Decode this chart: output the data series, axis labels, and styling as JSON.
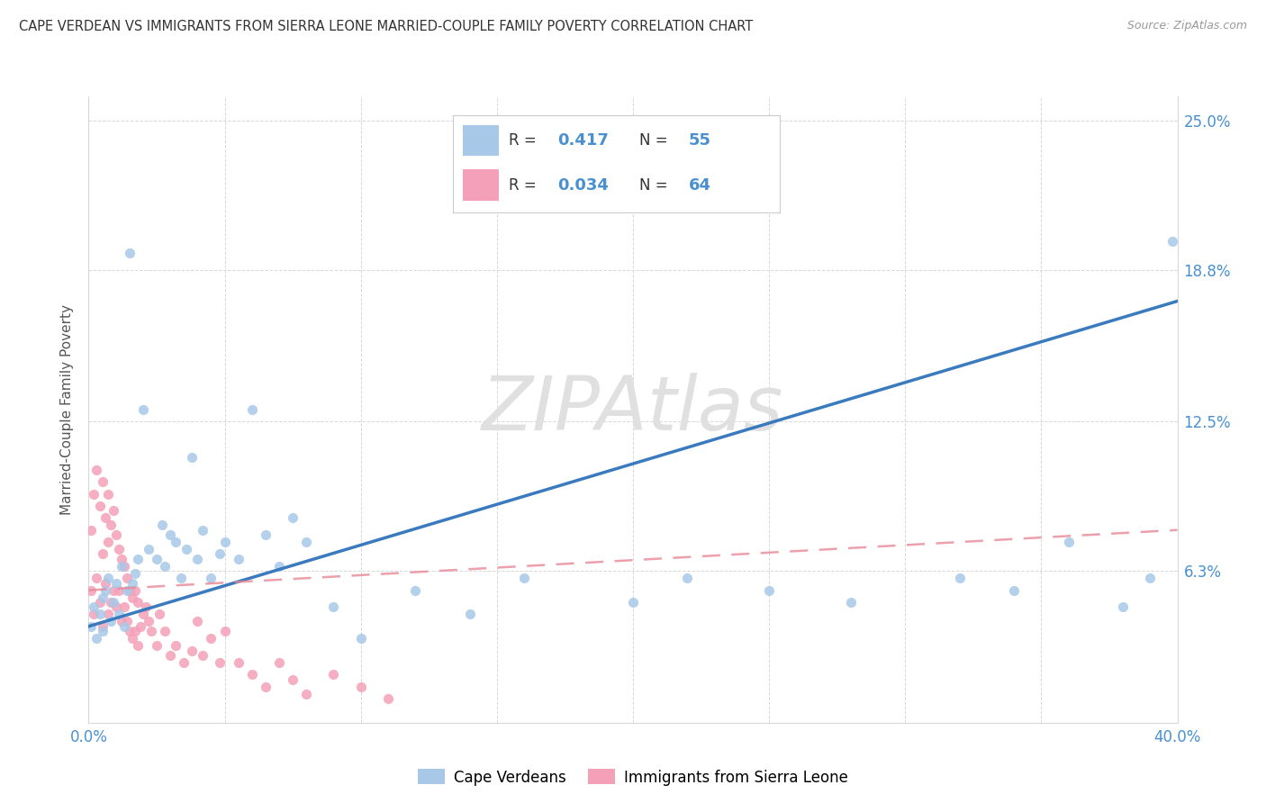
{
  "title": "CAPE VERDEAN VS IMMIGRANTS FROM SIERRA LEONE MARRIED-COUPLE FAMILY POVERTY CORRELATION CHART",
  "source": "Source: ZipAtlas.com",
  "ylabel": "Married-Couple Family Poverty",
  "watermark_text": "ZIPAtlas",
  "xlim": [
    0.0,
    0.4
  ],
  "ylim": [
    0.0,
    0.26
  ],
  "ytick_positions": [
    0.0,
    0.063,
    0.125,
    0.188,
    0.25
  ],
  "ytick_labels": [
    "",
    "6.3%",
    "12.5%",
    "18.8%",
    "25.0%"
  ],
  "xtick_positions": [
    0.0,
    0.05,
    0.1,
    0.15,
    0.2,
    0.25,
    0.3,
    0.35,
    0.4
  ],
  "xtick_labels": [
    "0.0%",
    "",
    "",
    "",
    "",
    "",
    "",
    "",
    "40.0%"
  ],
  "blue_scatter_color": "#a8c8e8",
  "pink_scatter_color": "#f4a0b8",
  "blue_line_color": "#3a7abf",
  "pink_line_color": "#e88898",
  "axis_tick_color": "#4a90d0",
  "title_color": "#333333",
  "grid_color": "#d8d8d8",
  "cape_verdean_label": "Cape Verdeans",
  "sierra_leone_label": "Immigrants from Sierra Leone",
  "cv_R": "0.417",
  "cv_N": "55",
  "sl_R": "0.034",
  "sl_N": "64",
  "cv_x": [
    0.001,
    0.002,
    0.003,
    0.004,
    0.005,
    0.005,
    0.006,
    0.007,
    0.008,
    0.009,
    0.01,
    0.011,
    0.012,
    0.013,
    0.014,
    0.015,
    0.016,
    0.017,
    0.018,
    0.02,
    0.022,
    0.025,
    0.027,
    0.028,
    0.03,
    0.032,
    0.034,
    0.036,
    0.038,
    0.04,
    0.042,
    0.045,
    0.048,
    0.05,
    0.055,
    0.06,
    0.065,
    0.07,
    0.075,
    0.08,
    0.09,
    0.1,
    0.12,
    0.14,
    0.16,
    0.2,
    0.22,
    0.25,
    0.28,
    0.32,
    0.34,
    0.36,
    0.38,
    0.39,
    0.398
  ],
  "cv_y": [
    0.04,
    0.048,
    0.035,
    0.045,
    0.038,
    0.052,
    0.055,
    0.06,
    0.042,
    0.05,
    0.058,
    0.045,
    0.065,
    0.04,
    0.055,
    0.195,
    0.058,
    0.062,
    0.068,
    0.13,
    0.072,
    0.068,
    0.082,
    0.065,
    0.078,
    0.075,
    0.06,
    0.072,
    0.11,
    0.068,
    0.08,
    0.06,
    0.07,
    0.075,
    0.068,
    0.13,
    0.078,
    0.065,
    0.085,
    0.075,
    0.048,
    0.035,
    0.055,
    0.045,
    0.06,
    0.05,
    0.06,
    0.055,
    0.05,
    0.06,
    0.055,
    0.075,
    0.048,
    0.06,
    0.2
  ],
  "sl_x": [
    0.001,
    0.001,
    0.002,
    0.002,
    0.003,
    0.003,
    0.004,
    0.004,
    0.005,
    0.005,
    0.005,
    0.006,
    0.006,
    0.007,
    0.007,
    0.007,
    0.008,
    0.008,
    0.009,
    0.009,
    0.01,
    0.01,
    0.011,
    0.011,
    0.012,
    0.012,
    0.013,
    0.013,
    0.014,
    0.014,
    0.015,
    0.015,
    0.016,
    0.016,
    0.017,
    0.017,
    0.018,
    0.018,
    0.019,
    0.02,
    0.021,
    0.022,
    0.023,
    0.025,
    0.026,
    0.028,
    0.03,
    0.032,
    0.035,
    0.038,
    0.04,
    0.042,
    0.045,
    0.048,
    0.05,
    0.055,
    0.06,
    0.065,
    0.07,
    0.075,
    0.08,
    0.09,
    0.1,
    0.11
  ],
  "sl_y": [
    0.055,
    0.08,
    0.045,
    0.095,
    0.06,
    0.105,
    0.05,
    0.09,
    0.04,
    0.07,
    0.1,
    0.058,
    0.085,
    0.045,
    0.075,
    0.095,
    0.05,
    0.082,
    0.055,
    0.088,
    0.048,
    0.078,
    0.055,
    0.072,
    0.042,
    0.068,
    0.048,
    0.065,
    0.042,
    0.06,
    0.038,
    0.055,
    0.035,
    0.052,
    0.038,
    0.055,
    0.032,
    0.05,
    0.04,
    0.045,
    0.048,
    0.042,
    0.038,
    0.032,
    0.045,
    0.038,
    0.028,
    0.032,
    0.025,
    0.03,
    0.042,
    0.028,
    0.035,
    0.025,
    0.038,
    0.025,
    0.02,
    0.015,
    0.025,
    0.018,
    0.012,
    0.02,
    0.015,
    0.01
  ]
}
